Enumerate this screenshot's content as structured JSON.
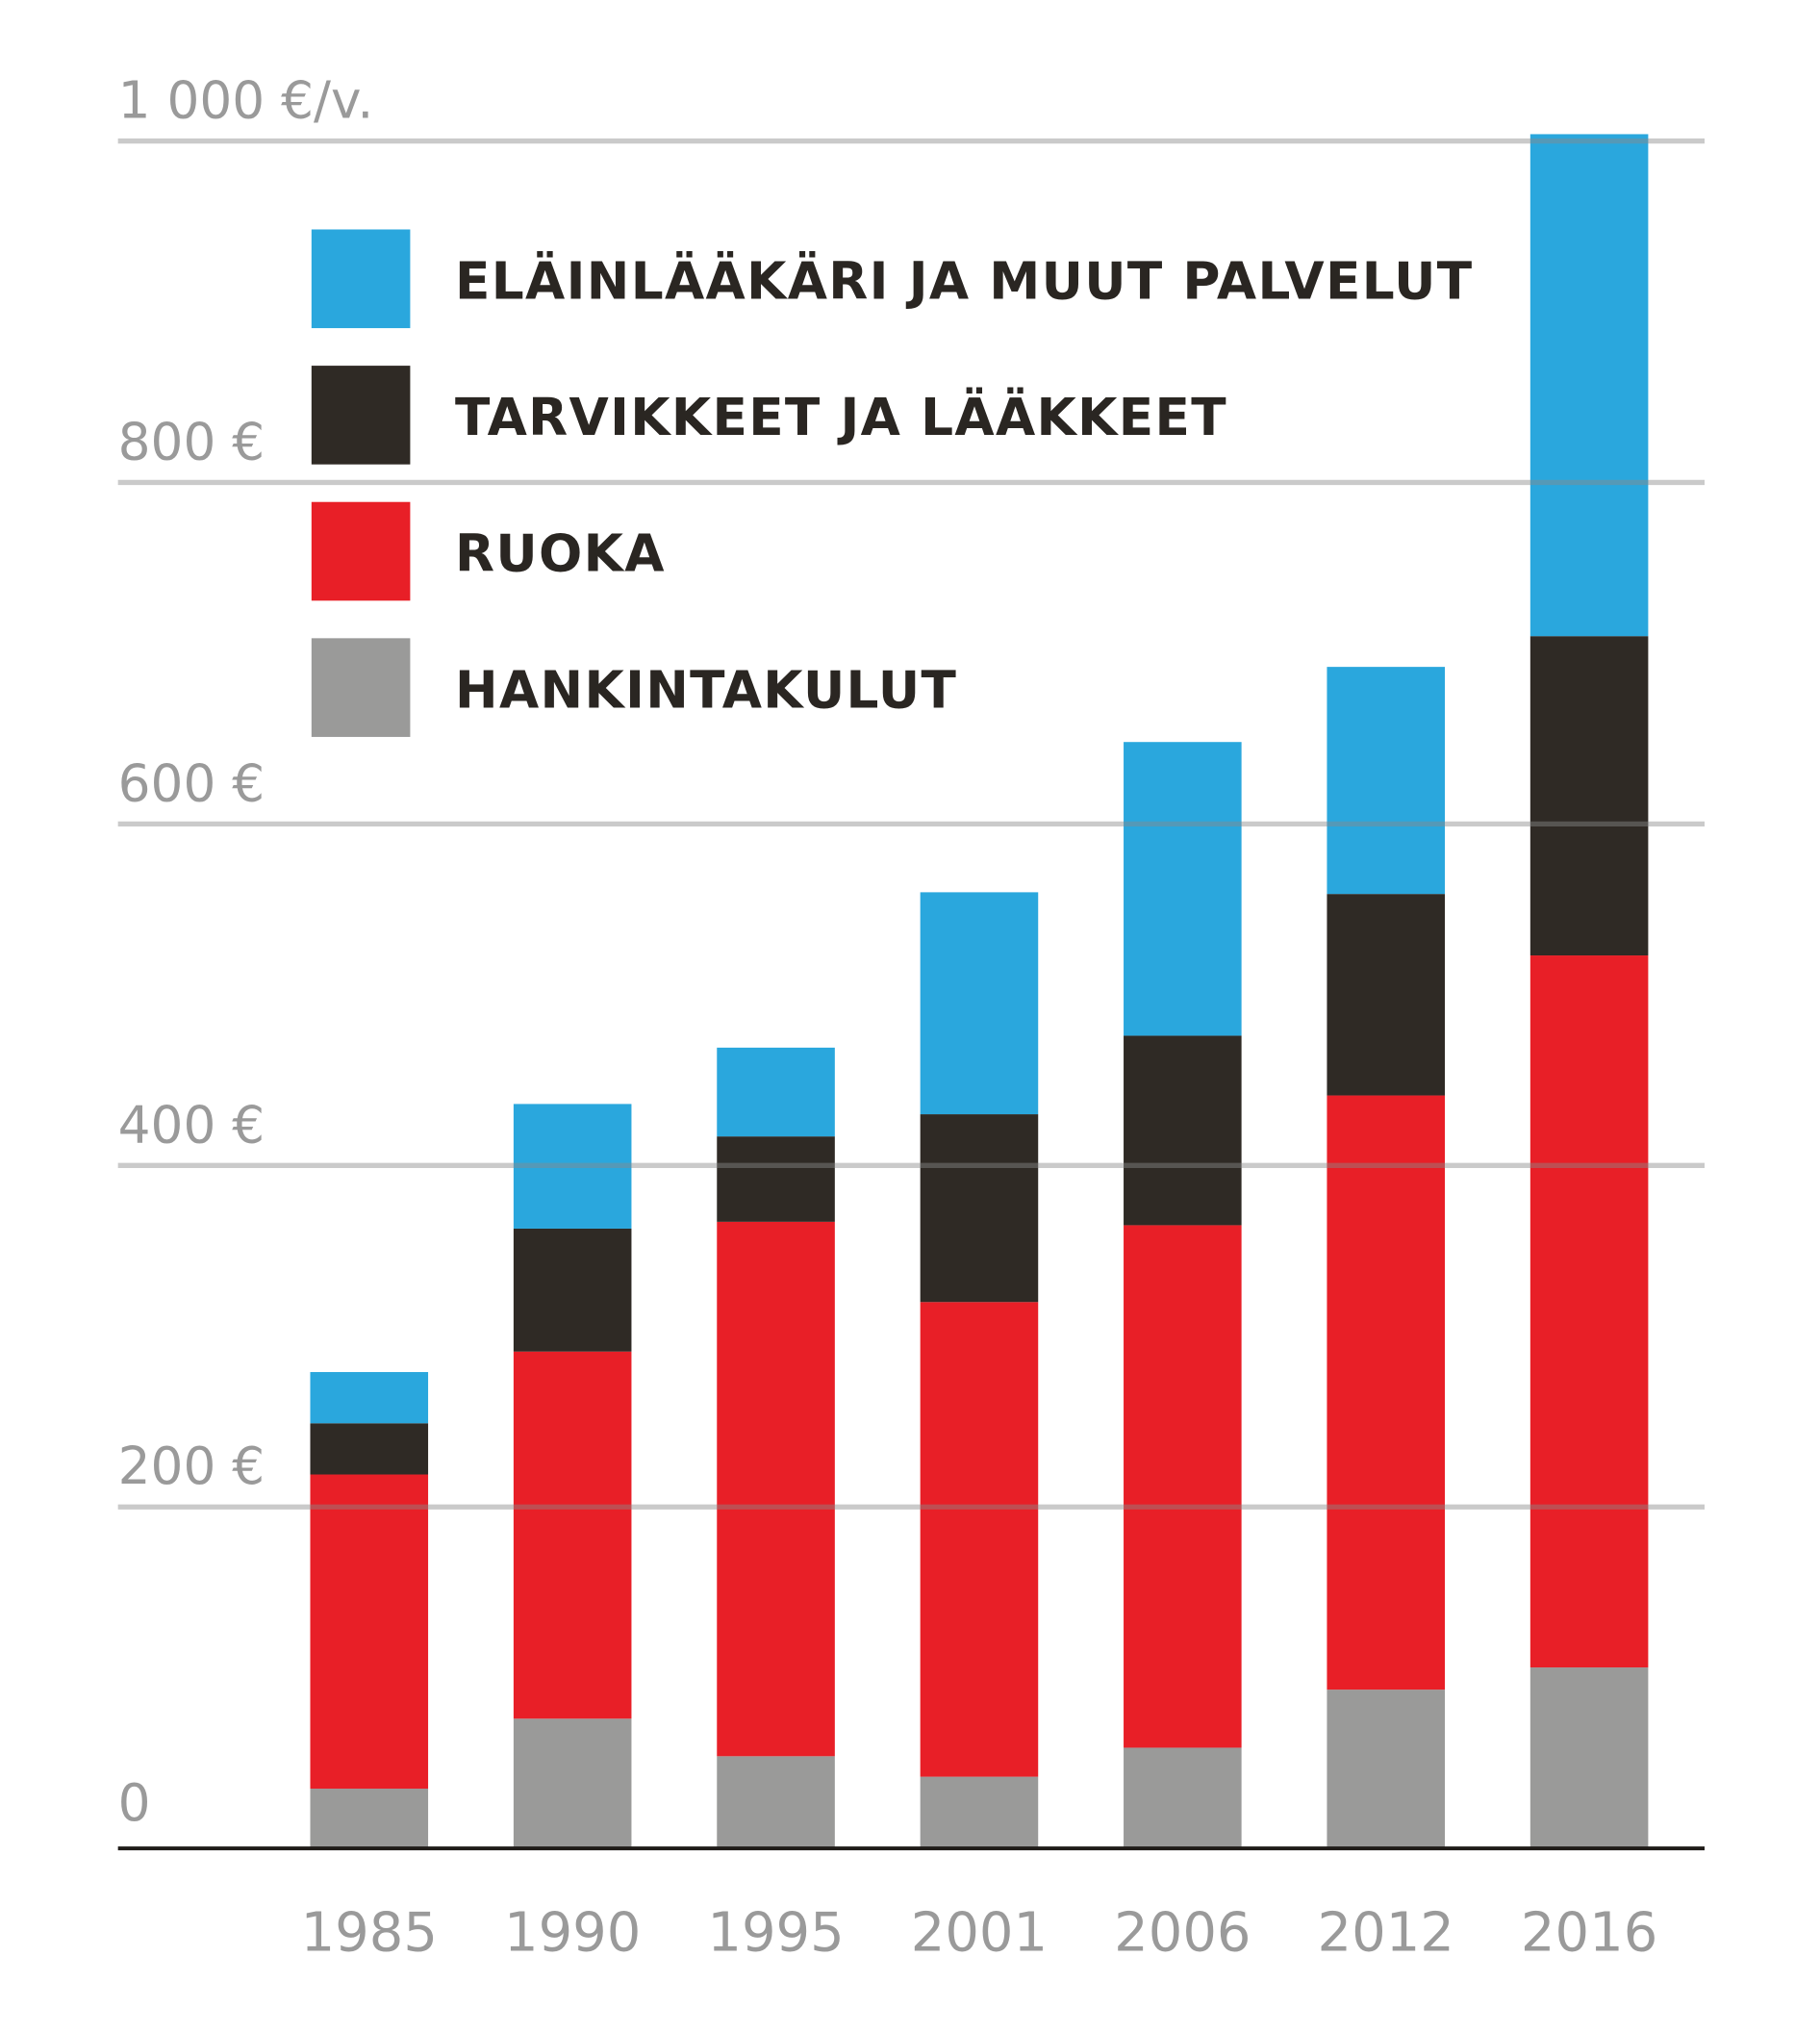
{
  "chart_data": {
    "type": "bar",
    "stacked": true,
    "title": "",
    "xlabel": "",
    "ylabel": "€/v.",
    "ylim": [
      0,
      1000
    ],
    "yticks": [
      0,
      200,
      400,
      600,
      800,
      1000
    ],
    "ytick_labels": [
      "0",
      "200 €",
      "400 €",
      "600 €",
      "800 €",
      "1 000 €/v."
    ],
    "grid": true,
    "legend_position": "top-left",
    "categories": [
      "1985",
      "1990",
      "1995",
      "2001",
      "2006",
      "2012",
      "2016"
    ],
    "series": [
      {
        "name": "HANKINTAKULUT",
        "color": "#9a9a99",
        "values": [
          35,
          76,
          54,
          42,
          59,
          93,
          106
        ]
      },
      {
        "name": "RUOKA",
        "color": "#e81f27",
        "values": [
          184,
          215,
          313,
          278,
          306,
          348,
          417
        ]
      },
      {
        "name": "TARVIKKEET JA LÄÄKKEET",
        "color": "#2f2a25",
        "values": [
          30,
          72,
          50,
          110,
          111,
          118,
          187
        ]
      },
      {
        "name": "ELÄINLÄÄKÄRI JA MUUT PALVELUT",
        "color": "#2aa7dd",
        "values": [
          30,
          73,
          52,
          130,
          172,
          133,
          294
        ]
      }
    ],
    "legend_order": [
      3,
      2,
      1,
      0
    ]
  }
}
